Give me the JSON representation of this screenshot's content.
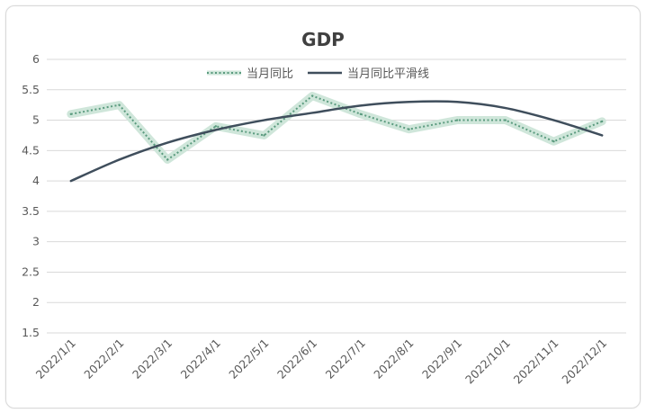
{
  "chart_data": {
    "type": "line",
    "title": "GDP",
    "xlabel": "",
    "ylabel": "",
    "ylim": [
      1.5,
      6
    ],
    "y_ticks": [
      "1.5",
      "2",
      "2.5",
      "3",
      "3.5",
      "4",
      "4.5",
      "5",
      "5.5",
      "6"
    ],
    "y_tick_values": [
      1.5,
      2,
      2.5,
      3,
      3.5,
      4,
      4.5,
      5,
      5.5,
      6
    ],
    "categories": [
      "2022/1/1",
      "2022/2/1",
      "2022/3/1",
      "2022/4/1",
      "2022/5/1",
      "2022/6/1",
      "2022/7/1",
      "2022/8/1",
      "2022/9/1",
      "2022/10/1",
      "2022/11/1",
      "2022/12/1"
    ],
    "series": [
      {
        "name": "当月同比",
        "style": "dotted-highlighted",
        "color": "#5b9b7f",
        "highlight_color": "#cfe6da",
        "values": [
          5.1,
          5.25,
          4.35,
          4.9,
          4.75,
          5.4,
          5.1,
          4.85,
          5.0,
          5.0,
          4.65,
          4.98
        ]
      },
      {
        "name": "当月同比平滑线",
        "style": "solid",
        "color": "#3f4e5c",
        "values": [
          4.0,
          4.35,
          4.63,
          4.84,
          5.0,
          5.12,
          5.24,
          5.3,
          5.3,
          5.2,
          5.0,
          4.75
        ]
      }
    ],
    "grid": true,
    "legend_position": "top"
  }
}
